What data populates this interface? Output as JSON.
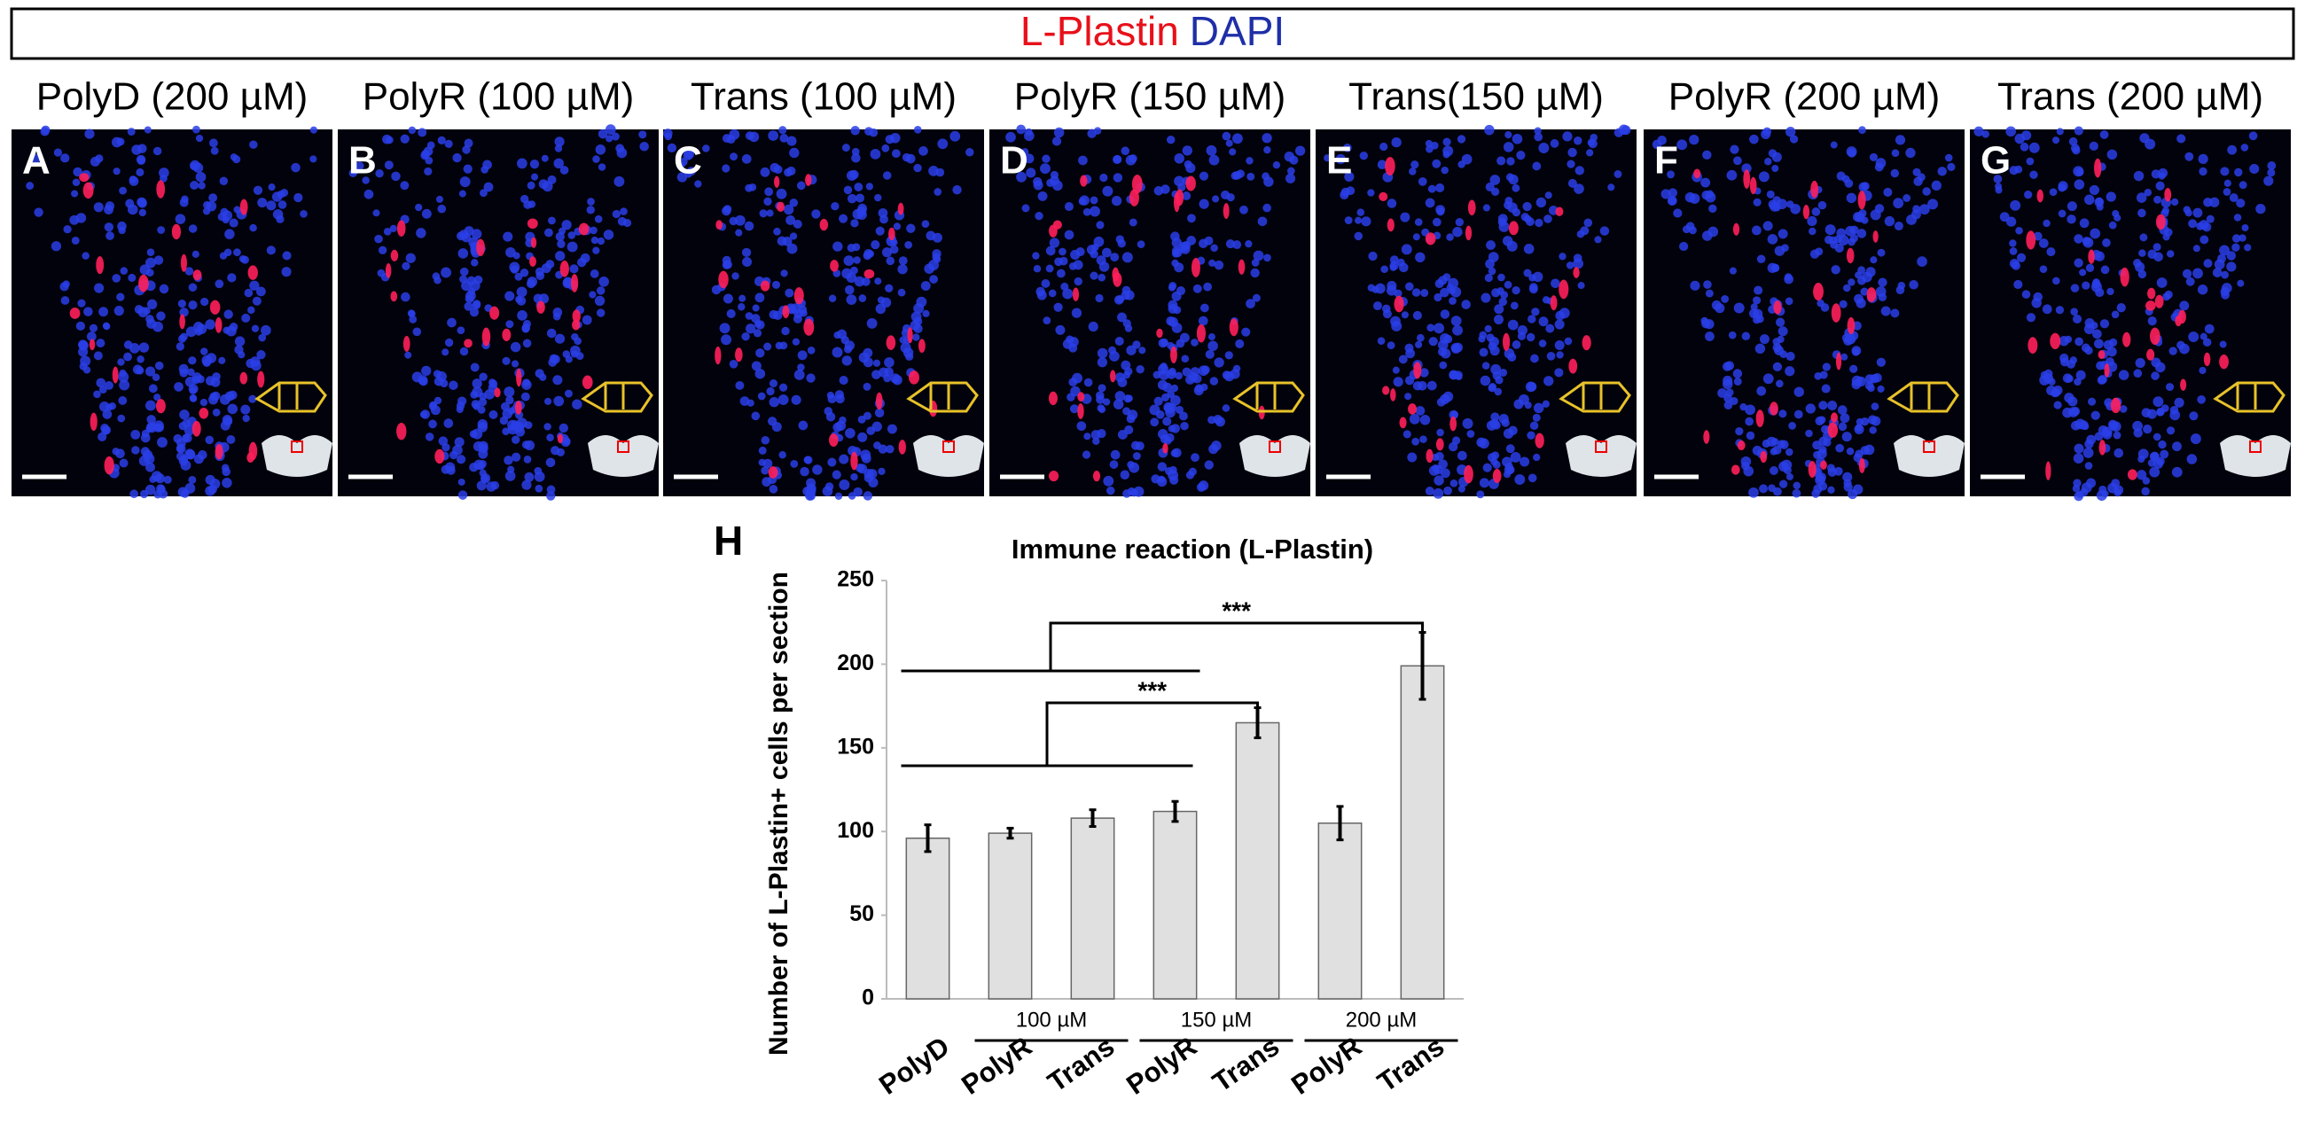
{
  "header": {
    "title_red": "L-Plastin",
    "title_blue": "DAPI"
  },
  "panels": [
    {
      "title": "PolyD (200 µM)",
      "letter": "A"
    },
    {
      "title": "PolyR (100 µM)",
      "letter": "B"
    },
    {
      "title": "Trans (100 µM)",
      "letter": "C"
    },
    {
      "title": "PolyR (150 µM)",
      "letter": "D"
    },
    {
      "title": "Trans(150 µM)",
      "letter": "E"
    },
    {
      "title": "PolyR (200 µM)",
      "letter": "F"
    },
    {
      "title": "Trans (200 µM)",
      "letter": "G"
    }
  ],
  "chart_data": {
    "type": "bar",
    "letter": "H",
    "title": "Immune reaction (L-Plastin)",
    "y_label": "Number of L-Plastin+ cells per section",
    "categories": [
      "PolyD",
      "PolyR",
      "Trans",
      "PolyR",
      "Trans",
      "PolyR",
      "Trans"
    ],
    "groups": [
      "100 µM",
      "150 µM",
      "200 µM"
    ],
    "values": [
      96,
      99,
      108,
      112,
      165,
      105,
      199
    ],
    "errors": [
      8,
      3,
      5,
      6,
      9,
      10,
      20
    ],
    "color": "#e0e0e0",
    "significance": [
      "***",
      "***"
    ],
    "ylim": [
      0,
      250
    ],
    "yticks": [
      0,
      50,
      100,
      150,
      200,
      250
    ],
    "grid": false
  }
}
